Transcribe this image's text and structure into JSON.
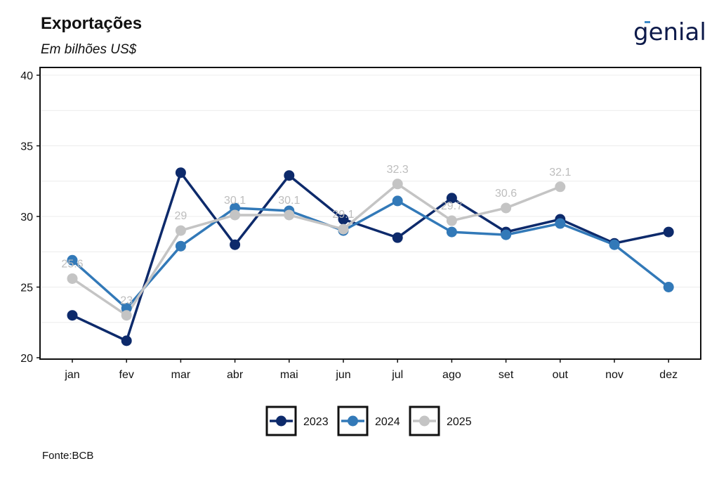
{
  "header": {
    "title": "Exportações",
    "subtitle": "Em bilhões US$",
    "logo_text": "genial"
  },
  "footer": {
    "source": "Fonte:BCB"
  },
  "colors": {
    "2023": "#0d2a6b",
    "2024": "#3279b8",
    "2025": "#c4c4c4",
    "label": "#bdbdbd",
    "grid": "#ececec"
  },
  "chart_data": {
    "type": "line",
    "title": "Exportações",
    "subtitle": "Em bilhões US$",
    "xlabel": "",
    "ylabel": "",
    "categories": [
      "jan",
      "fev",
      "mar",
      "abr",
      "mai",
      "jun",
      "jul",
      "ago",
      "set",
      "out",
      "nov",
      "dez"
    ],
    "ylim": [
      20,
      40
    ],
    "yticks": [
      20,
      25,
      30,
      35,
      40
    ],
    "grid": true,
    "legend_position": "bottom",
    "series": [
      {
        "name": "2023",
        "values": [
          23.0,
          21.2,
          33.1,
          28.0,
          32.9,
          29.8,
          28.5,
          31.3,
          28.9,
          29.8,
          28.1,
          28.9
        ]
      },
      {
        "name": "2024",
        "values": [
          26.9,
          23.5,
          27.9,
          30.6,
          30.4,
          29.0,
          31.1,
          28.9,
          28.7,
          29.5,
          28.0,
          25.0
        ]
      },
      {
        "name": "2025",
        "values": [
          25.6,
          23.0,
          29.0,
          30.1,
          30.1,
          29.1,
          32.3,
          29.7,
          30.6,
          32.1,
          null,
          null
        ]
      }
    ],
    "data_labels": {
      "series": "2025",
      "labels": [
        "25.6",
        "23",
        "29",
        "30.1",
        "30.1",
        "29.1",
        "32.3",
        "29.7",
        "30.6",
        "32.1"
      ]
    }
  }
}
